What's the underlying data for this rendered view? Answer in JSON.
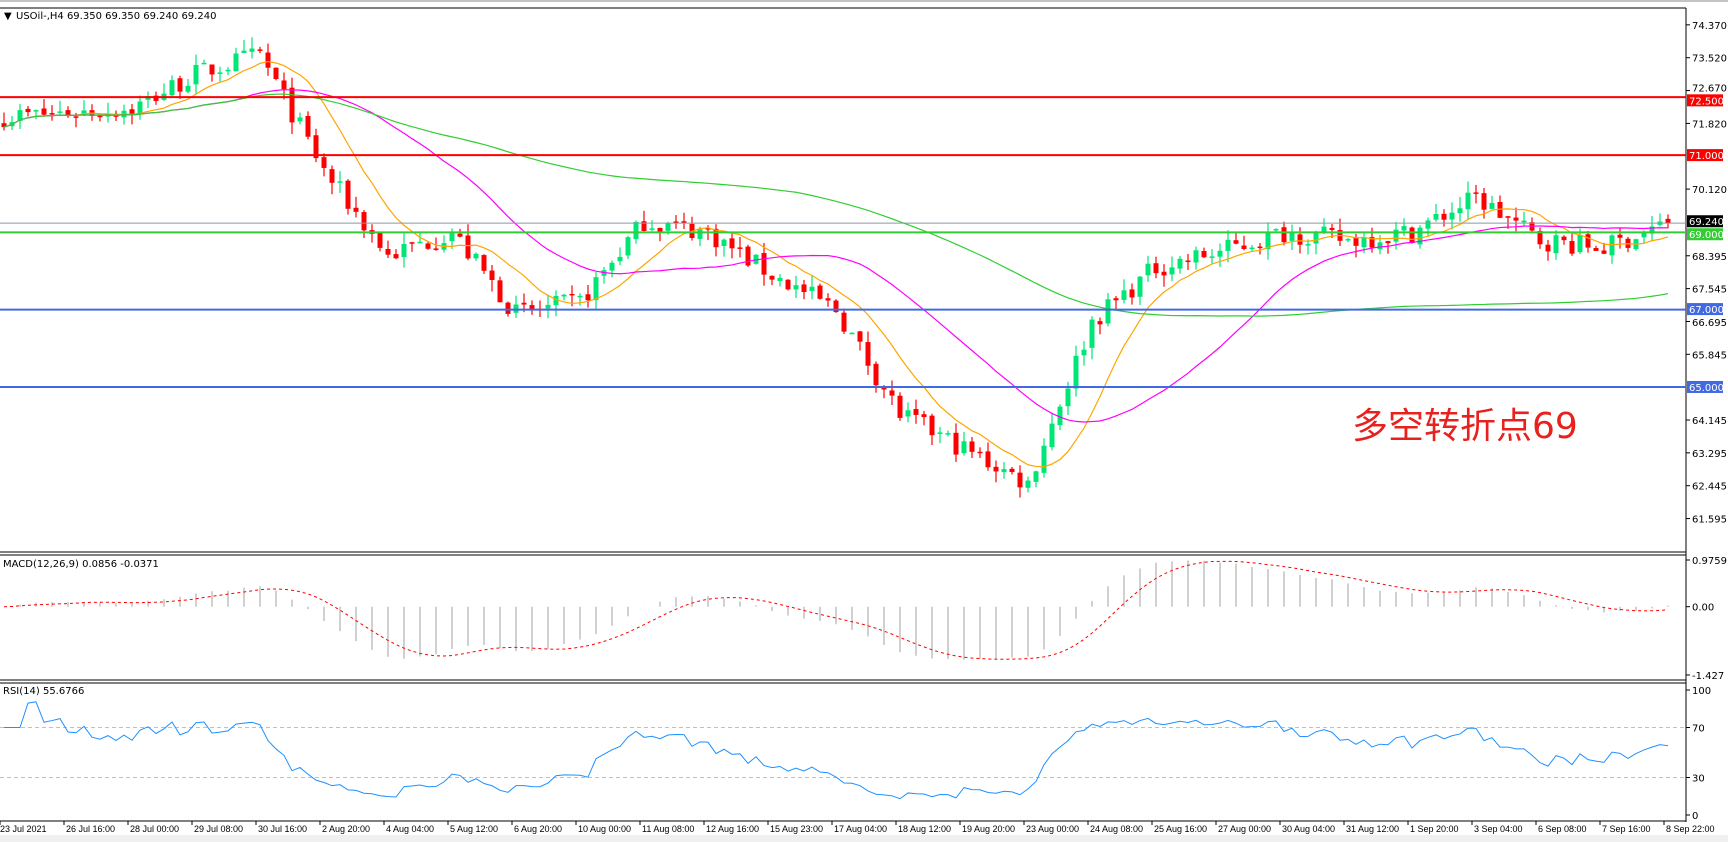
{
  "header": {
    "symbol_line": "USOil-,H4  69.350 69.350 69.240 69.240"
  },
  "annotation": "多空转折点69",
  "colors": {
    "bull": "#00e676",
    "bear": "#ff0000",
    "ma_fast": "#ffa500",
    "ma_mid": "#ff00ff",
    "ma_slow": "#32cd32",
    "rsi": "#1e90ff",
    "macd_hist": "#c0c0c0",
    "macd_signal": "#ff0000"
  },
  "chart_data": [
    {
      "type": "candlestick",
      "title": "USOil-,H4",
      "ohlc_last": {
        "open": 69.35,
        "high": 69.35,
        "low": 69.24,
        "close": 69.24
      },
      "x_ticks": [
        "23 Jul 2021",
        "26 Jul 16:00",
        "28 Jul 00:00",
        "29 Jul 08:00",
        "30 Jul 16:00",
        "2 Aug 20:00",
        "4 Aug 04:00",
        "5 Aug 12:00",
        "6 Aug 20:00",
        "10 Aug 00:00",
        "11 Aug 08:00",
        "12 Aug 16:00",
        "15 Aug 23:00",
        "17 Aug 04:00",
        "18 Aug 12:00",
        "19 Aug 20:00",
        "23 Aug 00:00",
        "24 Aug 08:00",
        "25 Aug 16:00",
        "27 Aug 00:00",
        "30 Aug 04:00",
        "31 Aug 12:00",
        "1 Sep 20:00",
        "3 Sep 04:00",
        "6 Sep 08:00",
        "7 Sep 16:00",
        "8 Sep 22:00"
      ],
      "approx_close_at_ticks": [
        72.0,
        72.1,
        72.2,
        73.1,
        73.6,
        70.6,
        68.4,
        69.0,
        66.9,
        67.2,
        69.3,
        69.0,
        67.9,
        67.0,
        64.3,
        63.4,
        62.5,
        66.7,
        68.1,
        68.5,
        69.0,
        68.8,
        69.0,
        69.9,
        68.8,
        68.6,
        69.24
      ],
      "y_ticks": [
        "74.370",
        "73.520",
        "72.670",
        "71.820",
        "70.120",
        "68.395",
        "67.545",
        "66.695",
        "65.845",
        "64.145",
        "63.295",
        "62.445",
        "61.595"
      ],
      "ylim": [
        60.73,
        74.78
      ],
      "horizontal_lines": [
        {
          "price": 72.5,
          "label": "72.500",
          "color": "#ff0000"
        },
        {
          "price": 71.0,
          "label": "71.000",
          "color": "#ff0000"
        },
        {
          "price": 69.0,
          "label": "69.000",
          "color": "#32cd32"
        },
        {
          "price": 67.0,
          "label": "67.000",
          "color": "#4169e1"
        },
        {
          "price": 65.0,
          "label": "65.000",
          "color": "#4169e1"
        }
      ],
      "current_price": {
        "price": 69.24,
        "label": "69.240"
      }
    },
    {
      "type": "bar",
      "title": "MACD(12,26,9) 0.0856 -0.0371",
      "y_ticks": [
        "0.9759",
        "0.00",
        "-1.427"
      ],
      "ylim": [
        -1.427,
        0.9759
      ]
    },
    {
      "type": "line",
      "title": "RSI(14) 55.6766",
      "y_ticks": [
        "100",
        "70",
        "30",
        "0"
      ],
      "ylim": [
        0,
        100
      ],
      "levels": [
        70,
        30
      ]
    }
  ]
}
